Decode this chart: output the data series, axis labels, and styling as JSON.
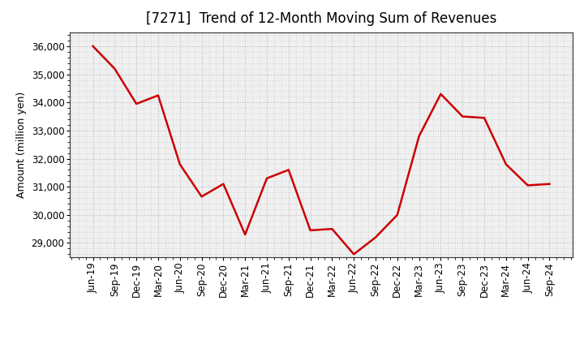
{
  "title": "[7271]  Trend of 12-Month Moving Sum of Revenues",
  "ylabel": "Amount (million yen)",
  "background_color": "#ffffff",
  "plot_bg_color": "#f0f0f0",
  "line_color": "#cc0000",
  "line_width": 1.8,
  "grid_color": "#bbbbbb",
  "xlabels": [
    "Jun-19",
    "Sep-19",
    "Dec-19",
    "Mar-20",
    "Jun-20",
    "Sep-20",
    "Dec-20",
    "Mar-21",
    "Jun-21",
    "Sep-21",
    "Dec-21",
    "Mar-22",
    "Jun-22",
    "Sep-22",
    "Dec-22",
    "Mar-23",
    "Jun-23",
    "Sep-23",
    "Dec-23",
    "Mar-24",
    "Jun-24",
    "Sep-24"
  ],
  "values": [
    36000,
    35200,
    33950,
    34250,
    31800,
    30650,
    31100,
    29300,
    31300,
    31600,
    29450,
    29500,
    28600,
    29200,
    30000,
    32800,
    34300,
    33500,
    33450,
    31800,
    31050,
    31100
  ],
  "ylim": [
    28500,
    36500
  ],
  "yticks": [
    29000,
    30000,
    31000,
    32000,
    33000,
    34000,
    35000,
    36000
  ],
  "title_fontsize": 12,
  "label_fontsize": 9,
  "tick_fontsize": 8.5
}
